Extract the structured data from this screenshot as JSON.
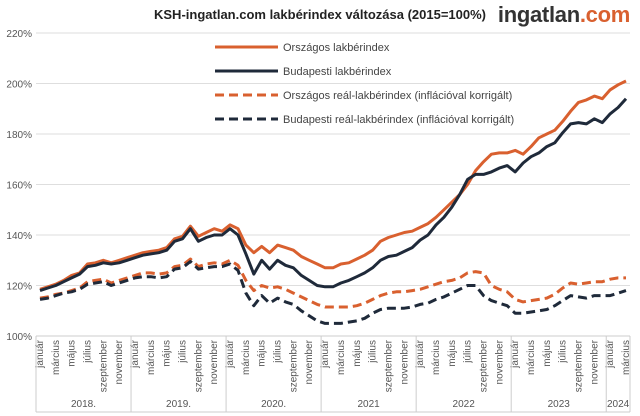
{
  "title": "KSH-ingatlan.com lakbérindex változása (2015=100%)",
  "logo": {
    "main": "ingatlan",
    "suffix": ".com"
  },
  "chart_data": {
    "type": "line",
    "title": "KSH-ingatlan.com lakbérindex változása (2015=100%)",
    "ylim": [
      100,
      220
    ],
    "yticks": [
      "100%",
      "120%",
      "140%",
      "160%",
      "180%",
      "200%",
      "220%"
    ],
    "grid": true,
    "legend": "top-left",
    "month_labels": [
      "január",
      "március",
      "május",
      "július",
      "szeptember",
      "november"
    ],
    "years": [
      {
        "label": "2018.",
        "months": 12
      },
      {
        "label": "2019.",
        "months": 12
      },
      {
        "label": "2020.",
        "months": 12
      },
      {
        "label": "2021",
        "months": 12
      },
      {
        "label": "2022",
        "months": 12
      },
      {
        "label": "2023",
        "months": 12
      },
      {
        "label": "2024",
        "months": 3
      }
    ],
    "series": [
      {
        "name": "Országos lakbérindex",
        "color": "#d9602f",
        "dashed": false,
        "values": [
          118.5,
          119.5,
          120.5,
          122,
          124,
          125,
          128.5,
          129,
          130,
          129,
          130,
          131,
          132,
          133,
          133.5,
          134,
          135,
          138.5,
          139.5,
          143.5,
          139.5,
          141,
          142.5,
          141.5,
          144,
          142.5,
          136,
          133,
          135.5,
          133,
          136,
          135,
          134,
          131.5,
          130,
          128.5,
          127,
          127,
          128.5,
          129,
          130.5,
          132,
          134,
          137.5,
          139,
          140,
          141,
          141.5,
          143,
          144.5,
          147,
          150,
          153,
          156,
          160,
          165.5,
          169,
          172,
          172.5,
          172.5,
          173.5,
          172,
          175,
          178.5,
          180,
          181.5,
          185,
          189,
          192.5,
          193.5,
          195,
          194,
          197.5,
          199.5,
          201
        ]
      },
      {
        "name": "Budapesti lakbérindex",
        "color": "#1f2a3a",
        "dashed": false,
        "values": [
          118,
          119,
          120,
          121.5,
          123,
          124.5,
          127.5,
          128,
          129,
          128.5,
          129,
          130,
          131,
          132,
          132.5,
          133,
          134,
          137.5,
          138.5,
          142.5,
          137.5,
          139,
          140,
          140,
          142.5,
          140,
          132.5,
          124.5,
          130,
          126.5,
          130,
          128,
          127,
          124,
          122,
          120,
          119.5,
          119.5,
          121,
          122,
          123.5,
          125,
          127,
          130,
          131.5,
          132,
          133.5,
          135,
          138,
          140,
          144,
          147,
          151,
          156,
          162,
          164,
          164,
          165,
          166.5,
          167.5,
          165,
          168.5,
          171,
          172.5,
          175,
          176.5,
          180.5,
          184,
          184.5,
          184,
          186,
          184.5,
          188,
          190.5,
          194
        ]
      },
      {
        "name": "Országos reál-lakbérindex (inflációval korrigált)",
        "color": "#d9602f",
        "dashed": true,
        "values": [
          115,
          115.5,
          116.5,
          117,
          118,
          119,
          121.5,
          122,
          122.5,
          121,
          122,
          123,
          124,
          125,
          125,
          124.5,
          125,
          127.5,
          128,
          130.5,
          127.5,
          128.5,
          129,
          128.5,
          130,
          128,
          122,
          118,
          120,
          119,
          119.5,
          118.5,
          117,
          115.5,
          114,
          112.5,
          111.5,
          111.5,
          111.5,
          111.5,
          112,
          113,
          114.5,
          116,
          117,
          117.5,
          117.5,
          118,
          118.5,
          119.5,
          120.5,
          121.5,
          122,
          123,
          125,
          125.5,
          125,
          120,
          118.5,
          117.5,
          114.5,
          113.5,
          114,
          114.5,
          115,
          116.5,
          119,
          121,
          120.5,
          121,
          121.5,
          121.5,
          122.5,
          123,
          123
        ]
      },
      {
        "name": "Budapesti reál-lakbérindex (inflációval korrigált)",
        "color": "#1f2a3a",
        "dashed": true,
        "values": [
          114.5,
          115,
          116,
          117,
          117.5,
          118.5,
          120.5,
          121,
          121.5,
          120,
          121,
          122,
          123,
          123.5,
          123.5,
          123,
          123.5,
          126.5,
          127,
          129.5,
          126.5,
          127,
          127.5,
          127.5,
          128.5,
          126,
          117,
          112,
          116,
          113,
          115,
          113.5,
          112.5,
          110,
          108,
          106,
          105,
          105,
          105,
          105.5,
          106,
          107,
          109,
          110.5,
          111,
          111,
          111,
          111.5,
          112.5,
          113,
          114.5,
          115.5,
          117,
          118.5,
          120,
          120,
          116,
          114,
          113,
          112,
          109,
          109,
          109.5,
          110,
          110.5,
          112,
          114,
          116,
          115.5,
          115,
          116,
          116,
          116,
          117,
          118
        ]
      }
    ]
  }
}
